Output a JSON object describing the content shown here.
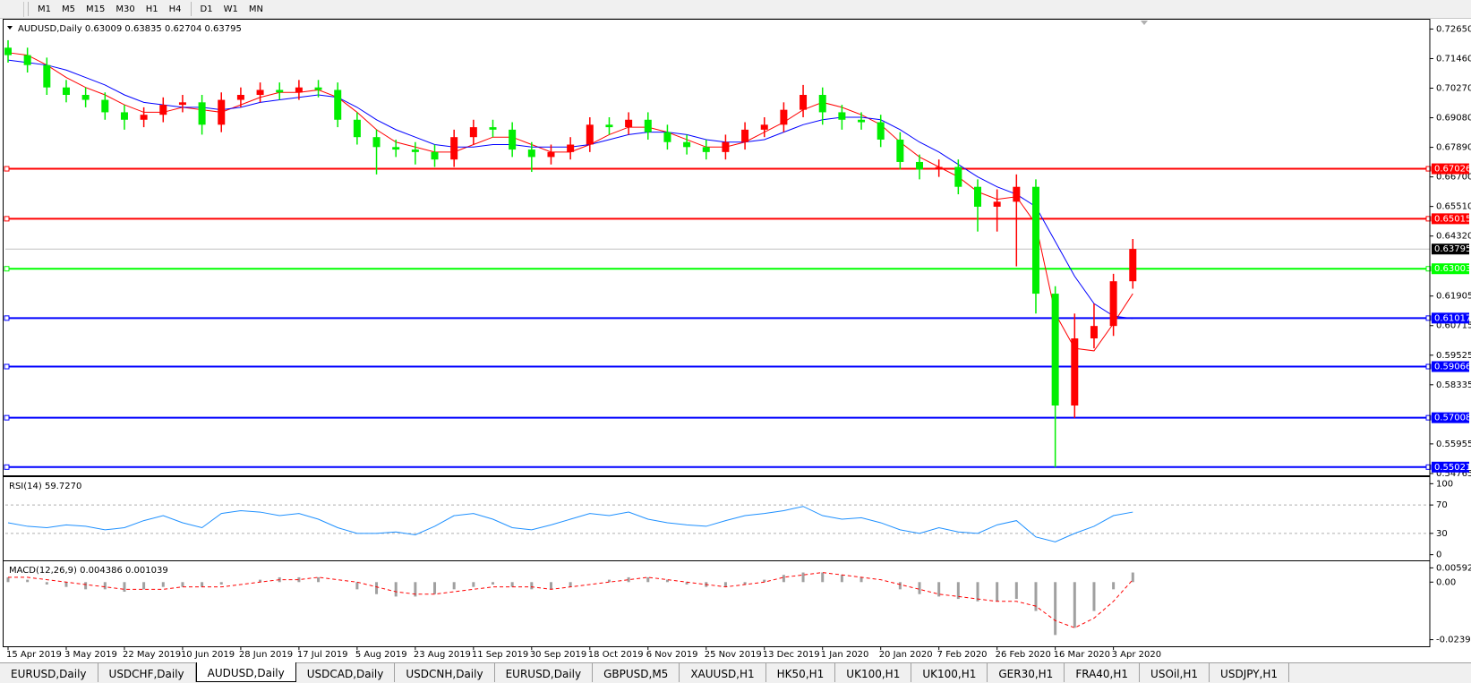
{
  "toolbar": {
    "timeframes": [
      "M1",
      "M5",
      "M15",
      "M30",
      "H1",
      "H4",
      "D1",
      "W1",
      "MN"
    ]
  },
  "tabs": {
    "items": [
      "EURUSD,Daily",
      "USDCHF,Daily",
      "AUDUSD,Daily",
      "USDCAD,Daily",
      "USDCNH,Daily",
      "EURUSD,Daily",
      "GBPUSD,M5",
      "XAUUSD,H1",
      "HK50,H1",
      "UK100,H1",
      "UK100,H1",
      "GER30,H1",
      "FRA40,H1",
      "USOil,H1",
      "USDJPY,H1"
    ],
    "active": 2
  },
  "chart_data": [
    {
      "type": "candlestick",
      "title": "AUDUSD,Daily  0.63009 0.63835 0.62704 0.63795",
      "categories": [
        "15 Apr 2019",
        null,
        null,
        "3 May 2019",
        null,
        null,
        "22 May 2019",
        null,
        null,
        "10 Jun 2019",
        null,
        null,
        "28 Jun 2019",
        null,
        null,
        "17 Jul 2019",
        null,
        null,
        "5 Aug 2019",
        null,
        null,
        "23 Aug 2019",
        null,
        null,
        "11 Sep 2019",
        null,
        null,
        "30 Sep 2019",
        null,
        null,
        "18 Oct 2019",
        null,
        null,
        "6 Nov 2019",
        null,
        null,
        "25 Nov 2019",
        null,
        null,
        "13 Dec 2019",
        null,
        null,
        "1 Jan 2020",
        null,
        null,
        "20 Jan 2020",
        null,
        null,
        "7 Feb 2020",
        null,
        null,
        "26 Feb 2020",
        null,
        null,
        "16 Mar 2020",
        null,
        null,
        "3 Apr 2020",
        null
      ],
      "open": [
        0.719,
        0.716,
        0.712,
        0.703,
        0.7,
        0.698,
        0.693,
        0.69,
        0.692,
        0.696,
        0.697,
        0.688,
        0.698,
        0.7,
        0.702,
        0.701,
        0.703,
        0.702,
        0.69,
        0.683,
        0.679,
        0.678,
        0.677,
        0.674,
        0.683,
        0.687,
        0.686,
        0.678,
        0.675,
        0.677,
        0.68,
        0.688,
        0.687,
        0.69,
        0.685,
        0.681,
        0.679,
        0.677,
        0.681,
        0.686,
        0.688,
        0.694,
        0.7,
        0.693,
        0.69,
        0.689,
        0.682,
        0.673,
        0.67,
        0.671,
        0.663,
        0.655,
        0.657,
        0.663,
        0.62,
        0.575,
        0.602,
        0.607,
        0.625
      ],
      "high": [
        0.722,
        0.719,
        0.715,
        0.706,
        0.703,
        0.701,
        0.696,
        0.695,
        0.699,
        0.7,
        0.7,
        0.701,
        0.703,
        0.705,
        0.705,
        0.706,
        0.706,
        0.705,
        0.693,
        0.686,
        0.682,
        0.681,
        0.68,
        0.686,
        0.69,
        0.69,
        0.689,
        0.681,
        0.68,
        0.683,
        0.691,
        0.691,
        0.693,
        0.693,
        0.688,
        0.684,
        0.682,
        0.684,
        0.689,
        0.691,
        0.697,
        0.704,
        0.703,
        0.696,
        0.693,
        0.692,
        0.685,
        0.676,
        0.674,
        0.674,
        0.666,
        0.662,
        0.668,
        0.666,
        0.623,
        0.612,
        0.616,
        0.628,
        0.642
      ],
      "low": [
        0.713,
        0.709,
        0.7,
        0.697,
        0.695,
        0.69,
        0.686,
        0.687,
        0.689,
        0.693,
        0.684,
        0.685,
        0.695,
        0.697,
        0.698,
        0.698,
        0.699,
        0.687,
        0.68,
        0.668,
        0.675,
        0.672,
        0.671,
        0.671,
        0.68,
        0.683,
        0.675,
        0.669,
        0.672,
        0.674,
        0.677,
        0.684,
        0.684,
        0.682,
        0.678,
        0.676,
        0.674,
        0.674,
        0.678,
        0.683,
        0.685,
        0.691,
        0.688,
        0.686,
        0.686,
        0.679,
        0.67,
        0.666,
        0.667,
        0.66,
        0.645,
        0.645,
        0.631,
        0.612,
        0.5502,
        0.57,
        0.598,
        0.603,
        0.622
      ],
      "close": [
        0.716,
        0.712,
        0.703,
        0.7,
        0.698,
        0.693,
        0.69,
        0.692,
        0.696,
        0.697,
        0.688,
        0.698,
        0.7,
        0.702,
        0.701,
        0.703,
        0.702,
        0.69,
        0.683,
        0.679,
        0.678,
        0.677,
        0.674,
        0.683,
        0.687,
        0.686,
        0.678,
        0.675,
        0.677,
        0.68,
        0.688,
        0.687,
        0.69,
        0.685,
        0.681,
        0.679,
        0.677,
        0.681,
        0.686,
        0.688,
        0.694,
        0.7,
        0.693,
        0.69,
        0.689,
        0.682,
        0.673,
        0.67,
        0.671,
        0.663,
        0.655,
        0.657,
        0.663,
        0.62,
        0.575,
        0.602,
        0.607,
        0.625,
        0.638
      ],
      "up_color": "#ff0000",
      "down_color": "#00ee00",
      "ma": [
        {
          "color": "#ff0000",
          "values": [
            0.717,
            0.716,
            0.712,
            0.707,
            0.703,
            0.7,
            0.696,
            0.693,
            0.693,
            0.695,
            0.694,
            0.693,
            0.696,
            0.699,
            0.701,
            0.701,
            0.702,
            0.699,
            0.693,
            0.686,
            0.681,
            0.679,
            0.677,
            0.677,
            0.68,
            0.683,
            0.683,
            0.68,
            0.677,
            0.677,
            0.68,
            0.684,
            0.687,
            0.687,
            0.685,
            0.682,
            0.679,
            0.679,
            0.681,
            0.685,
            0.689,
            0.694,
            0.697,
            0.695,
            0.692,
            0.688,
            0.681,
            0.675,
            0.671,
            0.667,
            0.661,
            0.658,
            0.659,
            0.648,
            0.612,
            0.598,
            0.597,
            0.608,
            0.62
          ]
        },
        {
          "color": "#0000ff",
          "values": [
            0.714,
            0.713,
            0.712,
            0.71,
            0.707,
            0.704,
            0.7,
            0.697,
            0.696,
            0.695,
            0.695,
            0.694,
            0.695,
            0.697,
            0.698,
            0.699,
            0.7,
            0.699,
            0.695,
            0.69,
            0.686,
            0.683,
            0.68,
            0.679,
            0.679,
            0.68,
            0.68,
            0.679,
            0.679,
            0.679,
            0.68,
            0.682,
            0.684,
            0.685,
            0.685,
            0.684,
            0.682,
            0.681,
            0.681,
            0.682,
            0.685,
            0.688,
            0.69,
            0.691,
            0.691,
            0.69,
            0.686,
            0.681,
            0.677,
            0.672,
            0.667,
            0.663,
            0.66,
            0.655,
            0.641,
            0.627,
            0.616,
            0.611,
            0.61
          ]
        }
      ],
      "levels": [
        {
          "value": 0.67026,
          "label": "0.67026",
          "color": "#ff0000"
        },
        {
          "value": 0.65015,
          "label": "0.65015",
          "color": "#ff0000"
        },
        {
          "value": 0.63003,
          "label": "0.63003",
          "color": "#00ff00"
        },
        {
          "value": 0.61017,
          "label": "0.61017",
          "color": "#0000ff"
        },
        {
          "value": 0.59066,
          "label": "0.59066",
          "color": "#0000ff"
        },
        {
          "value": 0.57008,
          "label": "0.57008",
          "color": "#0000ff"
        },
        {
          "value": 0.55021,
          "label": "0.55021",
          "color": "#0000ff"
        }
      ],
      "current": {
        "value": 0.63795,
        "label": "0.63795"
      },
      "ylim": [
        0.5469,
        0.7299
      ],
      "yticks": [
        {
          "value": 0.7265,
          "label": "0.72650"
        },
        {
          "value": 0.7146,
          "label": "0.71460"
        },
        {
          "value": 0.7027,
          "label": "0.70270"
        },
        {
          "value": 0.6908,
          "label": "0.69080"
        },
        {
          "value": 0.6789,
          "label": "0.67890"
        },
        {
          "value": 0.667,
          "label": "0.66700"
        },
        {
          "value": 0.6551,
          "label": "0.65510"
        },
        {
          "value": 0.6432,
          "label": "0.64320"
        },
        {
          "value": 0.61905,
          "label": "0.61905"
        },
        {
          "value": 0.60715,
          "label": "0.60715"
        },
        {
          "value": 0.59525,
          "label": "0.59525"
        },
        {
          "value": 0.58335,
          "label": "0.58335"
        },
        {
          "value": 0.55955,
          "label": "0.55955"
        },
        {
          "value": 0.54765,
          "label": "0.54765"
        }
      ]
    },
    {
      "type": "line",
      "title": "RSI(14) 59.7270",
      "color": "#1e90ff",
      "values": [
        45,
        40,
        38,
        42,
        40,
        35,
        38,
        48,
        55,
        45,
        38,
        58,
        62,
        60,
        55,
        58,
        50,
        38,
        30,
        30,
        32,
        28,
        40,
        55,
        58,
        50,
        38,
        35,
        42,
        50,
        58,
        55,
        60,
        50,
        45,
        42,
        40,
        48,
        55,
        58,
        62,
        68,
        55,
        50,
        52,
        45,
        35,
        30,
        38,
        32,
        30,
        42,
        48,
        25,
        18,
        30,
        40,
        55,
        60
      ],
      "levels": [
        70,
        30
      ],
      "ylim": [
        -8,
        108
      ],
      "yticks": [
        100,
        70,
        30,
        0
      ]
    },
    {
      "type": "macd",
      "title": "MACD(12,26,9) 0.004386 0.001039",
      "hist_color": "#a0a0a0",
      "signal_color": "#ff0000",
      "values": [
        0.002,
        0.001,
        -0.001,
        -0.002,
        -0.003,
        -0.003,
        -0.004,
        -0.003,
        -0.002,
        -0.002,
        -0.002,
        -0.001,
        0,
        0.001,
        0.002,
        0.002,
        0.002,
        0,
        -0.003,
        -0.005,
        -0.006,
        -0.006,
        -0.005,
        -0.003,
        -0.002,
        -0.001,
        -0.002,
        -0.003,
        -0.003,
        -0.002,
        0,
        0.001,
        0.002,
        0.002,
        0.001,
        -0.001,
        -0.002,
        -0.002,
        -0.001,
        0.001,
        0.003,
        0.004,
        0.004,
        0.003,
        0.002,
        0,
        -0.003,
        -0.005,
        -0.006,
        -0.007,
        -0.008,
        -0.008,
        -0.007,
        -0.012,
        -0.022,
        -0.019,
        -0.012,
        -0.003,
        0.004
      ],
      "signal": [
        0.002,
        0.002,
        0.001,
        0,
        -0.001,
        -0.002,
        -0.003,
        -0.003,
        -0.003,
        -0.002,
        -0.002,
        -0.002,
        -0.001,
        0,
        0.001,
        0.001,
        0.002,
        0.001,
        0,
        -0.002,
        -0.004,
        -0.005,
        -0.005,
        -0.004,
        -0.003,
        -0.002,
        -0.002,
        -0.002,
        -0.003,
        -0.002,
        -0.001,
        0,
        0.001,
        0.002,
        0.001,
        0,
        -0.001,
        -0.002,
        -0.001,
        0,
        0.002,
        0.003,
        0.004,
        0.003,
        0.002,
        0.001,
        -0.001,
        -0.003,
        -0.005,
        -0.006,
        -0.007,
        -0.008,
        -0.008,
        -0.01,
        -0.016,
        -0.019,
        -0.015,
        -0.008,
        0.001
      ],
      "ylim": [
        -0.0267,
        0.0083
      ],
      "yticks": [
        0.005923,
        {
          "value": 0,
          "label": "0.00"
        },
        -0.023944
      ]
    }
  ]
}
